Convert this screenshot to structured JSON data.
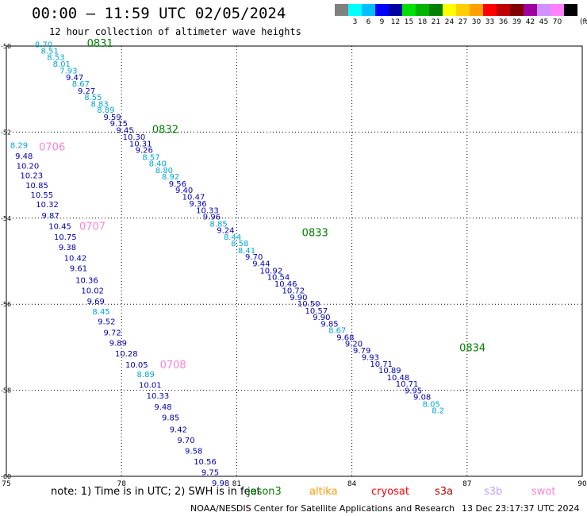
{
  "title": "00:00 – 11:59 UTC 02/05/2024",
  "subtitle": "12 hour collection of altimeter wave heights",
  "color_scale": {
    "unit": "(ft)",
    "bins": [
      {
        "label": "",
        "color": "#808080"
      },
      {
        "label": "3",
        "color": "#00ffff"
      },
      {
        "label": "6",
        "color": "#00bfff"
      },
      {
        "label": "9",
        "color": "#0000ff"
      },
      {
        "label": "12",
        "color": "#0000a0"
      },
      {
        "label": "15",
        "color": "#00e000"
      },
      {
        "label": "18",
        "color": "#00b400"
      },
      {
        "label": "21",
        "color": "#008000"
      },
      {
        "label": "24",
        "color": "#ffff00"
      },
      {
        "label": "27",
        "color": "#ffd000"
      },
      {
        "label": "30",
        "color": "#ffa000"
      },
      {
        "label": "33",
        "color": "#ff0000"
      },
      {
        "label": "36",
        "color": "#c00000"
      },
      {
        "label": "39",
        "color": "#800000"
      },
      {
        "label": "42",
        "color": "#a000a0"
      },
      {
        "label": "45",
        "color": "#d090ff"
      },
      {
        "label": "70",
        "color": "#ff80ff"
      },
      {
        "label": "",
        "color": "#000000"
      }
    ]
  },
  "axes": {
    "x_ticks": [
      "75",
      "78",
      "81",
      "84",
      "87",
      "90"
    ],
    "y_ticks": [
      "-50",
      "-52",
      "-54",
      "-56",
      "-58",
      "-60"
    ],
    "x_range": [
      75,
      90
    ],
    "y_range": [
      -50,
      -60
    ]
  },
  "colors": {
    "light": "#00a6d6",
    "dark": "#0000b4",
    "pass_jason": "#008000",
    "pass_swot": "#ff80d0"
  },
  "chart_data": {
    "type": "scatter",
    "tracks": [
      {
        "pass_label": "0831",
        "label_color": "#008000",
        "label_at": [
          77.1,
          -49.93
        ],
        "points": [
          {
            "lon": 75.74,
            "lat": -49.95,
            "v": "8.70",
            "c": "light"
          },
          {
            "lon": 75.9,
            "lat": -50.1,
            "v": "8.51",
            "c": "light"
          },
          {
            "lon": 76.06,
            "lat": -50.25,
            "v": "8.53",
            "c": "light"
          },
          {
            "lon": 76.21,
            "lat": -50.41,
            "v": "8.01",
            "c": "light"
          },
          {
            "lon": 76.39,
            "lat": -50.56,
            "v": "7.93",
            "c": "light"
          },
          {
            "lon": 76.55,
            "lat": -50.72,
            "v": "9.47",
            "c": "dark"
          },
          {
            "lon": 76.71,
            "lat": -50.87,
            "v": "8.67",
            "c": "light"
          },
          {
            "lon": 76.86,
            "lat": -51.03,
            "v": "9.27",
            "c": "dark"
          },
          {
            "lon": 77.03,
            "lat": -51.18,
            "v": "8.55",
            "c": "light"
          },
          {
            "lon": 77.2,
            "lat": -51.34,
            "v": "8.83",
            "c": "light"
          },
          {
            "lon": 77.36,
            "lat": -51.48,
            "v": "8.89",
            "c": "light"
          },
          {
            "lon": 77.53,
            "lat": -51.64,
            "v": "9.59",
            "c": "dark"
          },
          {
            "lon": 77.7,
            "lat": -51.79,
            "v": "9.15",
            "c": "dark"
          },
          {
            "lon": 77.86,
            "lat": -51.95,
            "v": "9.45",
            "c": "dark"
          },
          {
            "lon": 78.03,
            "lat": -52.1,
            "v": "10.30",
            "c": "dark"
          },
          {
            "lon": 78.2,
            "lat": -52.26,
            "v": "10.31",
            "c": "dark"
          },
          {
            "lon": 78.36,
            "lat": -52.41,
            "v": "9.26",
            "c": "dark"
          },
          {
            "lon": 78.54,
            "lat": -52.57,
            "v": "8.57",
            "c": "light"
          },
          {
            "lon": 78.71,
            "lat": -52.72,
            "v": "8.40",
            "c": "light"
          },
          {
            "lon": 78.88,
            "lat": -52.88,
            "v": "8.80",
            "c": "light"
          },
          {
            "lon": 79.05,
            "lat": -53.03,
            "v": "8.92",
            "c": "light"
          },
          {
            "lon": 79.23,
            "lat": -53.19,
            "v": "9.56",
            "c": "dark"
          },
          {
            "lon": 79.4,
            "lat": -53.34,
            "v": "9.40",
            "c": "dark"
          },
          {
            "lon": 79.58,
            "lat": -53.5,
            "v": "10.47",
            "c": "dark"
          },
          {
            "lon": 79.76,
            "lat": -53.65,
            "v": "9.36",
            "c": "dark"
          },
          {
            "lon": 79.94,
            "lat": -53.81,
            "v": "10.33",
            "c": "dark"
          },
          {
            "lon": 80.12,
            "lat": -53.96,
            "v": "9.96",
            "c": "dark"
          },
          {
            "lon": 80.3,
            "lat": -54.12,
            "v": "8.85",
            "c": "light"
          },
          {
            "lon": 80.48,
            "lat": -54.27,
            "v": "9.24",
            "c": "dark"
          },
          {
            "lon": 80.66,
            "lat": -54.43,
            "v": "8.44",
            "c": "light"
          },
          {
            "lon": 80.85,
            "lat": -54.58,
            "v": "8.58",
            "c": "light"
          },
          {
            "lon": 81.03,
            "lat": -54.74,
            "v": "8.41",
            "c": "light"
          },
          {
            "lon": 81.22,
            "lat": -54.89,
            "v": "9.70",
            "c": "dark"
          },
          {
            "lon": 81.41,
            "lat": -55.05,
            "v": "9.44",
            "c": "dark"
          },
          {
            "lon": 81.6,
            "lat": -55.21,
            "v": "10.92",
            "c": "dark"
          },
          {
            "lon": 81.79,
            "lat": -55.36,
            "v": "10.54",
            "c": "dark"
          },
          {
            "lon": 81.98,
            "lat": -55.52,
            "v": "10.46",
            "c": "dark"
          },
          {
            "lon": 82.18,
            "lat": -55.67,
            "v": "10.72",
            "c": "dark"
          },
          {
            "lon": 82.38,
            "lat": -55.83,
            "v": "9.90",
            "c": "dark"
          },
          {
            "lon": 82.58,
            "lat": -55.98,
            "v": "10.50",
            "c": "dark"
          },
          {
            "lon": 82.78,
            "lat": -56.14,
            "v": "10.57",
            "c": "dark"
          },
          {
            "lon": 82.98,
            "lat": -56.29,
            "v": "9.90",
            "c": "dark"
          },
          {
            "lon": 83.19,
            "lat": -56.45,
            "v": "9.85",
            "c": "dark"
          },
          {
            "lon": 83.39,
            "lat": -56.6,
            "v": "8.67",
            "c": "light"
          },
          {
            "lon": 83.6,
            "lat": -56.76,
            "v": "9.68",
            "c": "dark"
          },
          {
            "lon": 83.82,
            "lat": -56.91,
            "v": "9.20",
            "c": "dark"
          },
          {
            "lon": 84.03,
            "lat": -57.07,
            "v": "9.79",
            "c": "dark"
          },
          {
            "lon": 84.25,
            "lat": -57.22,
            "v": "9.93",
            "c": "dark"
          },
          {
            "lon": 84.47,
            "lat": -57.38,
            "v": "10.71",
            "c": "dark"
          },
          {
            "lon": 84.69,
            "lat": -57.53,
            "v": "10.89",
            "c": "dark"
          },
          {
            "lon": 84.91,
            "lat": -57.69,
            "v": "10.48",
            "c": "dark"
          },
          {
            "lon": 85.14,
            "lat": -57.84,
            "v": "10.71",
            "c": "dark"
          },
          {
            "lon": 85.37,
            "lat": -58.0,
            "v": "9.95",
            "c": "dark"
          },
          {
            "lon": 85.6,
            "lat": -58.15,
            "v": "9.08",
            "c": "dark"
          },
          {
            "lon": 85.84,
            "lat": -58.31,
            "v": "8.05",
            "c": "light"
          },
          {
            "lon": 86.08,
            "lat": -58.46,
            "v": "8.2",
            "c": "light"
          }
        ]
      },
      {
        "pass_label": "0832",
        "label_color": "#008000",
        "label_at": [
          78.8,
          -51.93
        ],
        "points": []
      },
      {
        "pass_label": "0833",
        "label_color": "#008000",
        "label_at": [
          82.7,
          -54.33
        ],
        "points": []
      },
      {
        "pass_label": "0834",
        "label_color": "#008000",
        "label_at": [
          86.8,
          -57.0
        ],
        "points": []
      },
      {
        "pass_label": "0706",
        "label_color": "#ff80d0",
        "label_at": [
          75.85,
          -52.33
        ],
        "points": [
          {
            "lon": 75.1,
            "lat": -52.3,
            "v": "8.29",
            "c": "light"
          },
          {
            "lon": 75.23,
            "lat": -52.55,
            "v": "9.48",
            "c": "dark"
          },
          {
            "lon": 75.26,
            "lat": -52.78,
            "v": "10.20",
            "c": "dark"
          },
          {
            "lon": 75.36,
            "lat": -53.0,
            "v": "10.23",
            "c": "dark"
          },
          {
            "lon": 75.5,
            "lat": -53.23,
            "v": "10.85",
            "c": "dark"
          },
          {
            "lon": 75.63,
            "lat": -53.45,
            "v": "10.55",
            "c": "dark"
          },
          {
            "lon": 75.77,
            "lat": -53.67,
            "v": "10.32",
            "c": "dark"
          },
          {
            "lon": 75.92,
            "lat": -53.93,
            "v": "9.87",
            "c": "dark"
          }
        ]
      },
      {
        "pass_label": "0707",
        "label_color": "#ff80d0",
        "label_at": [
          76.9,
          -54.18
        ],
        "points": [
          {
            "lon": 76.1,
            "lat": -54.18,
            "v": "10.45",
            "c": "dark"
          },
          {
            "lon": 76.24,
            "lat": -54.43,
            "v": "10.75",
            "c": "dark"
          },
          {
            "lon": 76.36,
            "lat": -54.67,
            "v": "9.38",
            "c": "dark"
          },
          {
            "lon": 76.5,
            "lat": -54.92,
            "v": "10.42",
            "c": "dark"
          },
          {
            "lon": 76.65,
            "lat": -55.16,
            "v": "9.61",
            "c": "dark"
          },
          {
            "lon": 76.8,
            "lat": -55.43,
            "v": "10.36",
            "c": "dark"
          },
          {
            "lon": 76.95,
            "lat": -55.67,
            "v": "10.02",
            "c": "dark"
          },
          {
            "lon": 77.1,
            "lat": -55.92,
            "v": "9.69",
            "c": "dark"
          },
          {
            "lon": 77.24,
            "lat": -56.16,
            "v": "8.45",
            "c": "light"
          },
          {
            "lon": 77.38,
            "lat": -56.39,
            "v": "9.52",
            "c": "dark"
          },
          {
            "lon": 77.53,
            "lat": -56.65,
            "v": "9.72",
            "c": "dark"
          },
          {
            "lon": 77.68,
            "lat": -56.89,
            "v": "9.89",
            "c": "dark"
          },
          {
            "lon": 77.83,
            "lat": -57.14,
            "v": "10.28",
            "c": "dark"
          },
          {
            "lon": 78.1,
            "lat": -57.4,
            "v": "10.05",
            "c": "dark"
          }
        ]
      },
      {
        "pass_label": "0708",
        "label_color": "#ff80d0",
        "label_at": [
          79.0,
          -57.4
        ],
        "points": [
          {
            "lon": 78.4,
            "lat": -57.62,
            "v": "8.89",
            "c": "light"
          },
          {
            "lon": 78.45,
            "lat": -57.87,
            "v": "10.01",
            "c": "dark"
          },
          {
            "lon": 78.65,
            "lat": -58.12,
            "v": "10.33",
            "c": "dark"
          },
          {
            "lon": 78.85,
            "lat": -58.38,
            "v": "9.48",
            "c": "dark"
          },
          {
            "lon": 79.05,
            "lat": -58.63,
            "v": "9.85",
            "c": "dark"
          },
          {
            "lon": 79.25,
            "lat": -58.9,
            "v": "9.42",
            "c": "dark"
          },
          {
            "lon": 79.45,
            "lat": -59.15,
            "v": "9.70",
            "c": "dark"
          },
          {
            "lon": 79.65,
            "lat": -59.4,
            "v": "9.58",
            "c": "dark"
          },
          {
            "lon": 79.88,
            "lat": -59.65,
            "v": "10.56",
            "c": "dark"
          },
          {
            "lon": 80.08,
            "lat": -59.9,
            "v": "9.75",
            "c": "dark"
          },
          {
            "lon": 80.35,
            "lat": -60.15,
            "v": "9.98",
            "c": "dark"
          }
        ]
      }
    ]
  },
  "note": "note:  1) Time is in UTC;  2) SWH is in feet",
  "missions": [
    {
      "name": "jason3",
      "color": "#008000"
    },
    {
      "name": "altika",
      "color": "#ff9900"
    },
    {
      "name": "cryosat",
      "color": "#ff0000"
    },
    {
      "name": "s3a",
      "color": "#b00000"
    },
    {
      "name": "s3b",
      "color": "#c0a0ff"
    },
    {
      "name": "swot",
      "color": "#ff80d0"
    }
  ],
  "footer": {
    "source": "NOAA/NESDIS Center for Satellite Applications and Research",
    "timestamp": "13 Dec 23:17:37 UTC 2024"
  }
}
